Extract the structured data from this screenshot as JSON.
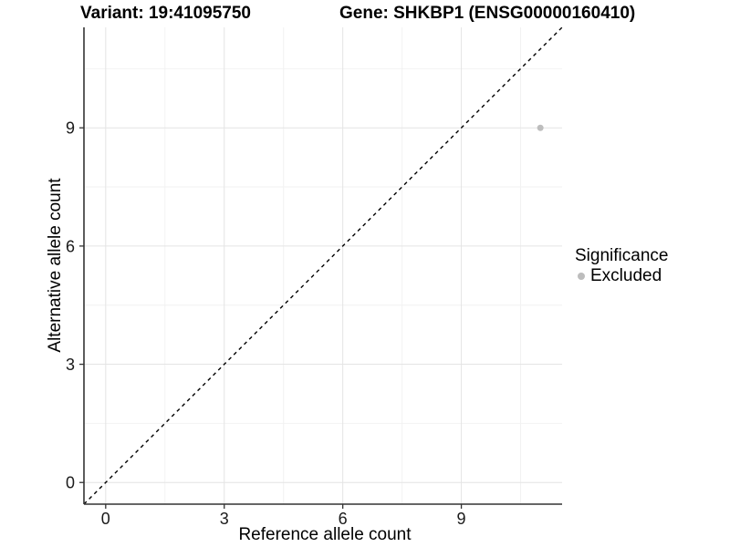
{
  "header": {
    "variant_title": "Variant: 19:41095750",
    "gene_title": "Gene: SHKBP1 (ENSG00000160410)"
  },
  "chart_data": {
    "type": "scatter",
    "title": "Variant: 19:41095750   Gene: SHKBP1 (ENSG00000160410)",
    "xlabel": "Reference allele count",
    "ylabel": "Alternative allele count",
    "xlim": [
      -0.55,
      11.55
    ],
    "ylim": [
      -0.55,
      11.55
    ],
    "x_ticks": [
      0,
      3,
      6,
      9
    ],
    "y_ticks": [
      0,
      3,
      6,
      9
    ],
    "x_minor_ticks": [
      1.5,
      4.5,
      7.5,
      10.5
    ],
    "y_minor_ticks": [
      1.5,
      4.5,
      7.5,
      10.5
    ],
    "grid": true,
    "points": [
      {
        "x": 11,
        "y": 9,
        "significance": "Excluded"
      }
    ],
    "identity_line": {
      "style": "dashed",
      "from": -0.55,
      "to": 11.55
    },
    "legend": {
      "title": "Significance",
      "position": "right",
      "entries": [
        {
          "label": "Excluded",
          "color": "#bdbdbd"
        }
      ]
    },
    "colors": {
      "point": "#bdbdbd",
      "axis": "#333333",
      "tick": "#333333",
      "identity_line": "#000000",
      "grid_major": "#e4e4e4",
      "grid_minor": "#f2f2f2",
      "text": "#1a1a1a",
      "background": "#ffffff"
    }
  }
}
